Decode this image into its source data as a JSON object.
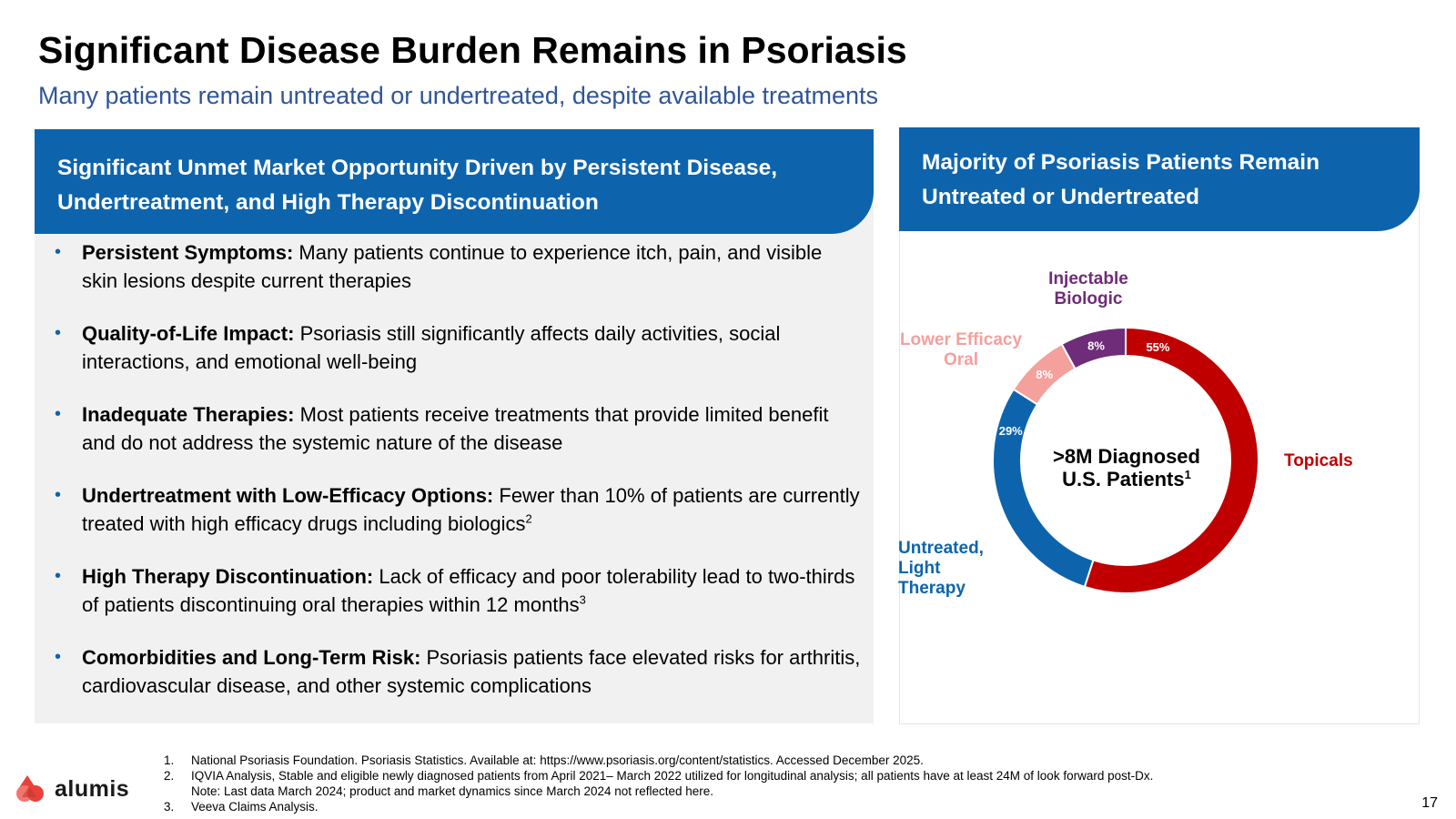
{
  "title": "Significant Disease Burden Remains in Psoriasis",
  "subtitle": "Many patients remain untreated or undertreated, despite available treatments",
  "left_panel": {
    "header_line1": "Significant Unmet Market Opportunity Driven by Persistent Disease,",
    "header_line2": "Undertreatment, and High Therapy Discontinuation",
    "bullets": [
      {
        "label": "Persistent Symptoms:",
        "text": " Many patients continue to experience itch, pain, and visible skin lesions despite current therapies",
        "sup": ""
      },
      {
        "label": "Quality-of-Life Impact:",
        "text": " Psoriasis still significantly affects daily activities, social interactions, and emotional well-being",
        "sup": ""
      },
      {
        "label": "Inadequate Therapies:",
        "text": " Most patients receive treatments that provide limited benefit and do not address the systemic nature of the disease",
        "sup": ""
      },
      {
        "label": "Undertreatment with Low-Efficacy Options:",
        "text": " Fewer than 10% of patients are currently treated with high efficacy drugs including biologics",
        "sup": "2"
      },
      {
        "label": "High Therapy Discontinuation:",
        "text": " Lack of efficacy and poor tolerability lead to two-thirds of patients discontinuing oral therapies within 12 months",
        "sup": "3"
      },
      {
        "label": "Comorbidities and Long-Term Risk:",
        "text": " Psoriasis patients face elevated risks for arthritis, cardiovascular disease, and other systemic complications",
        "sup": ""
      }
    ]
  },
  "right_panel": {
    "header_line1": "Majority of Psoriasis Patients Remain",
    "header_line2": "Untreated or Undertreated",
    "center_line1": ">8M Diagnosed",
    "center_line2": "U.S. Patients",
    "center_sup": "1"
  },
  "chart_data": {
    "type": "pie",
    "title": "",
    "center_label": ">8M Diagnosed U.S. Patients",
    "slices": [
      {
        "name": "Topicals",
        "value": 55,
        "label": "55%",
        "color": "#c00000"
      },
      {
        "name": "Untreated, Light Therapy",
        "value": 29,
        "label": "29%",
        "color": "#0d64ad"
      },
      {
        "name": "Lower Efficacy Oral",
        "value": 8,
        "label": "8%",
        "color": "#f4a09c"
      },
      {
        "name": "Injectable Biologic",
        "value": 8,
        "label": "8%",
        "color": "#6f2c79"
      }
    ]
  },
  "seg_labels": {
    "topicals": "Topicals",
    "untreated": [
      "Untreated,",
      "Light",
      "Therapy"
    ],
    "oral": [
      "Lower Efficacy",
      "Oral"
    ],
    "biologic": [
      "Injectable",
      "Biologic"
    ]
  },
  "footnotes": [
    {
      "num": "1.",
      "text": "National Psoriasis Foundation. Psoriasis Statistics. Available at: https://www.psoriasis.org/content/statistics. Accessed December 2025."
    },
    {
      "num": "2.",
      "text": "IQVIA Analysis, Stable and eligible newly diagnosed patients from April 2021– March 2022 utilized for longitudinal analysis; all patients have at least 24M of look forward post-Dx."
    },
    {
      "num": "",
      "text": "Note: Last data March 2024; product and market dynamics since March 2024 not reflected here."
    },
    {
      "num": "3.",
      "text": "Veeva Claims Analysis."
    }
  ],
  "logo_text": "alumis",
  "page_number": "17",
  "colors": {
    "accent_blue": "#0d64ad",
    "subtitle_blue": "#2f5597",
    "topicals_red": "#c00000",
    "biologic_purple": "#6f2c79",
    "oral_pink": "#f4a09c",
    "panel_gray": "#f1f1f1"
  }
}
